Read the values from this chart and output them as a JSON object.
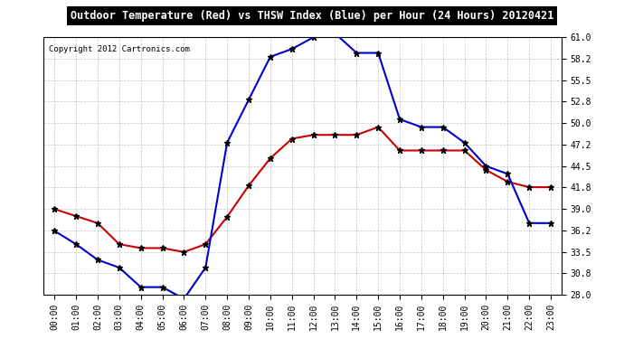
{
  "title": "Outdoor Temperature (Red) vs THSW Index (Blue) per Hour (24 Hours) 20120421",
  "copyright": "Copyright 2012 Cartronics.com",
  "hours": [
    "00:00",
    "01:00",
    "02:00",
    "03:00",
    "04:00",
    "05:00",
    "06:00",
    "07:00",
    "08:00",
    "09:00",
    "10:00",
    "11:00",
    "12:00",
    "13:00",
    "14:00",
    "15:00",
    "16:00",
    "17:00",
    "18:00",
    "19:00",
    "20:00",
    "21:00",
    "22:00",
    "23:00"
  ],
  "red_temp": [
    39.0,
    38.1,
    37.2,
    34.5,
    34.0,
    34.0,
    33.5,
    34.5,
    38.0,
    42.0,
    45.5,
    48.0,
    48.5,
    48.5,
    48.5,
    49.5,
    46.5,
    46.5,
    46.5,
    46.5,
    44.0,
    42.5,
    41.8,
    41.8
  ],
  "blue_thsw": [
    36.2,
    34.5,
    32.5,
    31.5,
    29.0,
    29.0,
    27.5,
    31.5,
    47.5,
    53.0,
    58.5,
    59.5,
    61.0,
    61.5,
    59.0,
    59.0,
    50.5,
    49.5,
    49.5,
    47.5,
    44.5,
    43.5,
    37.2,
    37.2
  ],
  "ylim": [
    28.0,
    61.0
  ],
  "yticks": [
    28.0,
    30.8,
    33.5,
    36.2,
    39.0,
    41.8,
    44.5,
    47.2,
    50.0,
    52.8,
    55.5,
    58.2,
    61.0
  ],
  "red_color": "#cc0000",
  "blue_color": "#0000cc",
  "bg_color": "#ffffff",
  "grid_color": "#aaaaaa",
  "title_bg": "#000000",
  "title_fg": "#ffffff"
}
